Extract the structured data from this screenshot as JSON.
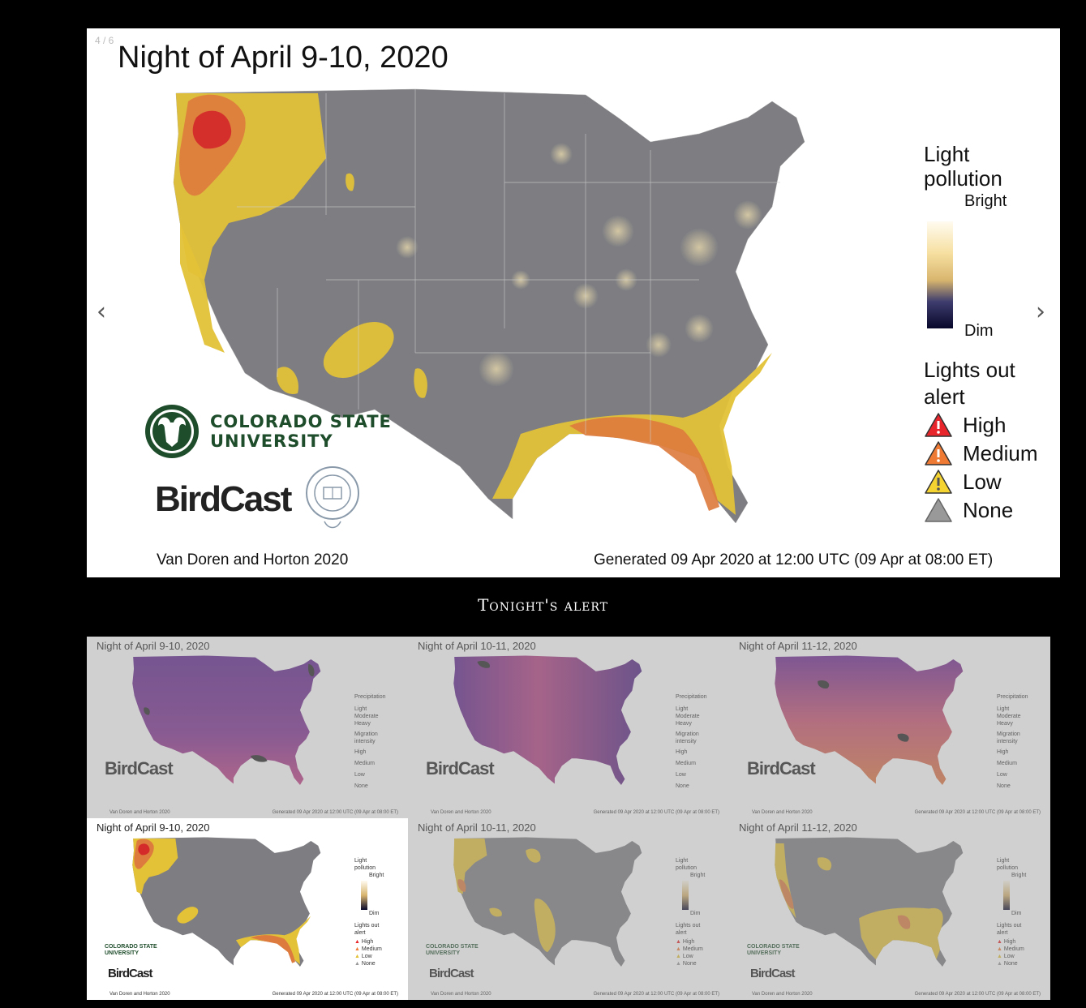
{
  "main": {
    "slide_counter": "4 / 6",
    "title": "Night of April 9-10, 2020",
    "prev_arrow": "‹",
    "next_arrow": "›",
    "legend": {
      "light_title_line1": "Light",
      "light_title_line2": "pollution",
      "bright_label": "Bright",
      "dim_label": "Dim",
      "alert_title_line1": "Lights out",
      "alert_title_line2": "alert",
      "alert_levels": [
        {
          "label": "High",
          "color": "#e8252a"
        },
        {
          "label": "Medium",
          "color": "#ee7a33"
        },
        {
          "label": "Low",
          "color": "#f5d432"
        },
        {
          "label": "None",
          "color": "#999999"
        }
      ]
    },
    "csu_line1": "COLORADO STATE",
    "csu_line2": "UNIVERSITY",
    "birdcast": "BirdCast",
    "footer_left": "Van Doren and Horton 2020",
    "footer_right": "Generated 09 Apr 2020 at 12:00 UTC (09 Apr at 08:00 ET)"
  },
  "section_caption": "Tonight's alert",
  "thumbnails": {
    "migration": [
      {
        "title": "Night of April 9-10, 2020"
      },
      {
        "title": "Night of April 10-11, 2020"
      },
      {
        "title": "Night of April 11-12, 2020"
      }
    ],
    "light": [
      {
        "title": "Night of April 9-10, 2020"
      },
      {
        "title": "Night of April 10-11, 2020"
      },
      {
        "title": "Night of April 11-12, 2020"
      }
    ],
    "precip_legend": {
      "title": "Precipitation",
      "levels": [
        "Light",
        "Moderate",
        "Heavy"
      ],
      "migration_title_line1": "Migration",
      "migration_title_line2": "intensity",
      "intensity": [
        "High",
        "Medium",
        "Low",
        "None"
      ]
    },
    "light_legend": {
      "title_line1": "Light",
      "title_line2": "pollution",
      "bright": "Bright",
      "dim": "Dim",
      "alert_line1": "Lights out",
      "alert_line2": "alert",
      "levels": [
        "High",
        "Medium",
        "Low",
        "None"
      ]
    },
    "birdcast": "BirdCast",
    "csu_line1": "COLORADO STATE",
    "csu_line2": "UNIVERSITY",
    "footer_left": "Van Doren and Horton 2020",
    "footer_right": "Generated 09 Apr 2020 at 12:00 UTC (09 Apr at 08:00 ET)"
  }
}
